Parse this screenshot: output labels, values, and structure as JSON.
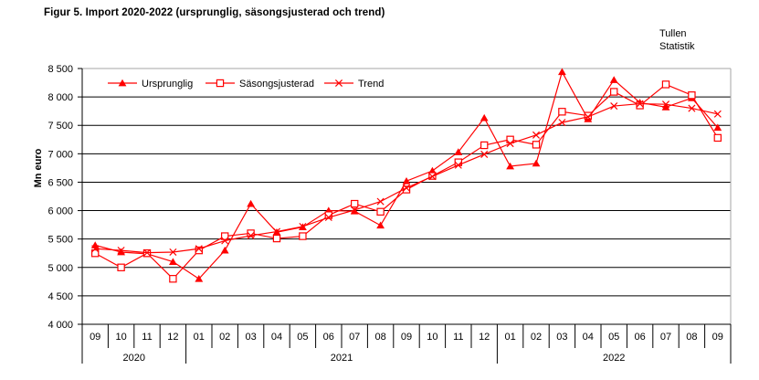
{
  "header": {
    "title": "Figur 5. Import 2020-2022 (ursprunglig, säsongsjusterad och trend)",
    "watermark_line1": "Tullen",
    "watermark_line2": "Statistik"
  },
  "chart_data": {
    "type": "line",
    "title": "Figur 5. Import 2020-2022 (ursprunglig, säsongsjusterad och trend)",
    "xlabel": "",
    "ylabel": "Mn euro",
    "ylim": [
      4000,
      8500
    ],
    "ytick_step": 500,
    "ytick_labels": [
      "8 500",
      "8 000",
      "7 500",
      "7 000",
      "6 500",
      "6 000",
      "5 500",
      "5 000",
      "4 500",
      "4 000"
    ],
    "grid": "horizontal-black-lines",
    "legend_position": "inside-top-left",
    "x_months": [
      "09",
      "10",
      "11",
      "12",
      "01",
      "02",
      "03",
      "04",
      "05",
      "06",
      "07",
      "08",
      "09",
      "10",
      "11",
      "12",
      "01",
      "02",
      "03",
      "04",
      "05",
      "06",
      "07",
      "08",
      "09"
    ],
    "year_groups": [
      {
        "label": "2020",
        "count": 4
      },
      {
        "label": "2021",
        "count": 12
      },
      {
        "label": "2022",
        "count": 9
      }
    ],
    "series_color": "#FF0000",
    "series": [
      {
        "name": "Ursprunglig",
        "marker": "triangle",
        "values": [
          5390,
          5270,
          5240,
          5100,
          4800,
          5300,
          6120,
          5620,
          5710,
          6000,
          5990,
          5740,
          6520,
          6700,
          7030,
          7630,
          6780,
          6830,
          8440,
          7610,
          8300,
          7900,
          7820,
          7980,
          7460
        ]
      },
      {
        "name": "Säsongsjusterad",
        "marker": "square",
        "values": [
          5250,
          5000,
          5250,
          4800,
          5300,
          5550,
          5600,
          5510,
          5550,
          5920,
          6120,
          5980,
          6370,
          6610,
          6850,
          7150,
          7250,
          7160,
          7740,
          7670,
          8090,
          7850,
          8220,
          8030,
          7280
        ]
      },
      {
        "name": "Trend",
        "marker": "x",
        "values": [
          5330,
          5300,
          5260,
          5270,
          5330,
          5470,
          5560,
          5630,
          5720,
          5880,
          6010,
          6160,
          6400,
          6600,
          6800,
          6990,
          7180,
          7330,
          7550,
          7650,
          7840,
          7880,
          7870,
          7800,
          7700
        ]
      }
    ]
  }
}
